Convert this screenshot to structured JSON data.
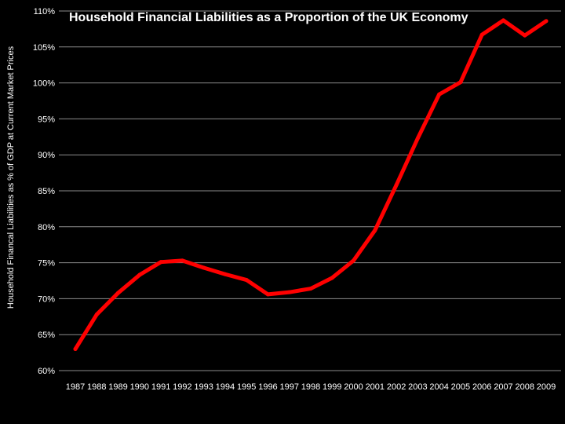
{
  "chart_data": {
    "type": "line",
    "title": "Household Financial Liabilities as a Proportion of the UK Economy",
    "xlabel": "",
    "ylabel": "Household Financal Liabilities as % of GDP at Current Market Prices",
    "x": [
      "1987",
      "1988",
      "1989",
      "1990",
      "1991",
      "1992",
      "1993",
      "1994",
      "1995",
      "1996",
      "1997",
      "1998",
      "1999",
      "2000",
      "2001",
      "2002",
      "2003",
      "2004",
      "2005",
      "2006",
      "2007",
      "2008",
      "2009"
    ],
    "series": [
      {
        "values": [
          63.0,
          67.8,
          70.8,
          73.3,
          75.1,
          75.3,
          74.3,
          73.4,
          72.6,
          70.6,
          70.9,
          71.4,
          72.9,
          75.3,
          79.5,
          85.8,
          92.3,
          98.4,
          100.1,
          106.7,
          108.7,
          106.6,
          108.6
        ]
      }
    ],
    "ylim": [
      60,
      110
    ],
    "yticks": [
      {
        "value": 60,
        "label": "60%"
      },
      {
        "value": 65,
        "label": "65%"
      },
      {
        "value": 70,
        "label": "70%"
      },
      {
        "value": 75,
        "label": "75%"
      },
      {
        "value": 80,
        "label": "80%"
      },
      {
        "value": 85,
        "label": "85%"
      },
      {
        "value": 90,
        "label": "90%"
      },
      {
        "value": 95,
        "label": "95%"
      },
      {
        "value": 100,
        "label": "100%"
      },
      {
        "value": 105,
        "label": "105%"
      },
      {
        "value": 110,
        "label": "110%"
      }
    ],
    "grid": true,
    "legend": "none",
    "colors": {
      "background": "#000000",
      "line": "#ff0000",
      "grid": "#8c8c8c",
      "text": "#ffffff"
    }
  }
}
